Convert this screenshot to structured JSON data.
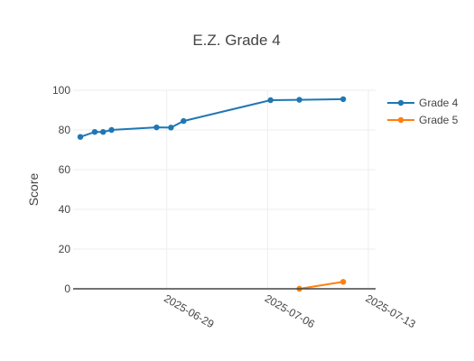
{
  "chart_data": {
    "type": "line",
    "title": "E.Z. Grade 4",
    "xlabel": "",
    "ylabel": "Score",
    "x_type": "date",
    "xlim": [
      "2025-06-22T12:00",
      "2025-07-13T12:00"
    ],
    "ylim": [
      0,
      100
    ],
    "yticks": [
      0,
      20,
      40,
      60,
      80,
      100
    ],
    "xticks": [
      "2025-06-29",
      "2025-07-06",
      "2025-07-13"
    ],
    "grid": true,
    "legend_position": "top-right",
    "series": [
      {
        "name": "Grade 4",
        "color": "#1f77b4",
        "points": [
          [
            "2025-06-23",
            76.5
          ],
          [
            "2025-06-24",
            79
          ],
          [
            "2025-06-24T14:00",
            79
          ],
          [
            "2025-06-25T04:00",
            80
          ],
          [
            "2025-06-28T07:00",
            81.3
          ],
          [
            "2025-06-29T07:00",
            81.2
          ],
          [
            "2025-06-30T04:00",
            84.5
          ],
          [
            "2025-07-06T05:00",
            95
          ],
          [
            "2025-07-08T05:00",
            95.2
          ],
          [
            "2025-07-11T06:00",
            95.5
          ]
        ]
      },
      {
        "name": "Grade 5",
        "color": "#ff7f0e",
        "points": [
          [
            "2025-07-08T05:00",
            0
          ],
          [
            "2025-07-11T06:00",
            3.5
          ]
        ]
      }
    ]
  }
}
